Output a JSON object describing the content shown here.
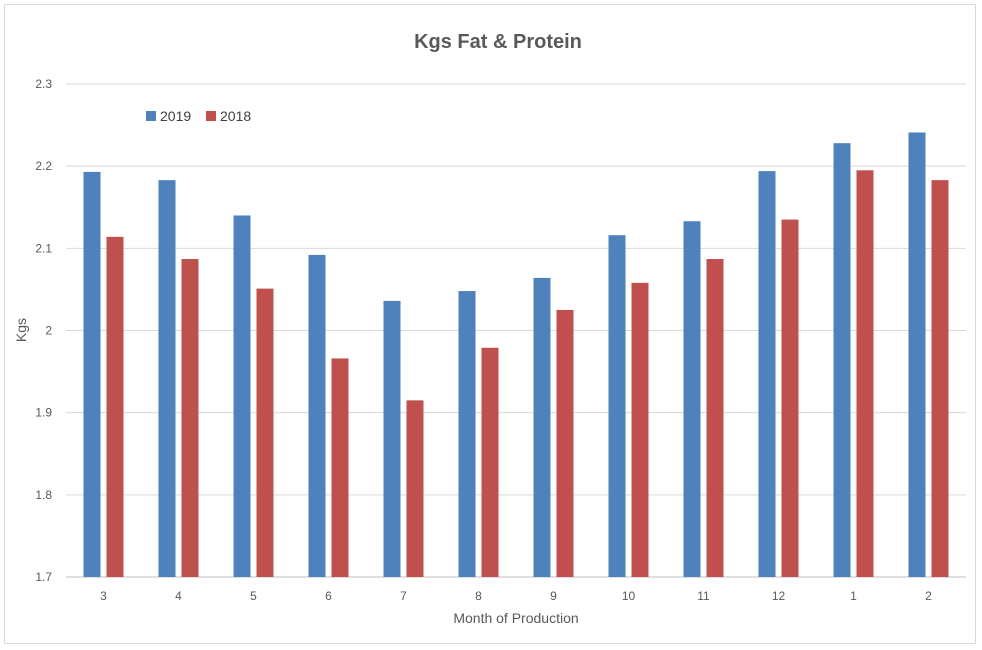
{
  "chart_data": {
    "type": "bar",
    "title": "Kgs Fat & Protein",
    "xlabel": "Month of Production",
    "ylabel": "Kgs",
    "categories": [
      "3",
      "4",
      "5",
      "6",
      "7",
      "8",
      "9",
      "10",
      "11",
      "12",
      "1",
      "2"
    ],
    "series": [
      {
        "name": "2019",
        "color": "#4f81bd",
        "values": [
          2.193,
          2.183,
          2.14,
          2.092,
          2.036,
          2.048,
          2.064,
          2.116,
          2.133,
          2.194,
          2.228,
          2.241
        ]
      },
      {
        "name": "2018",
        "color": "#c0504d",
        "values": [
          2.114,
          2.087,
          2.051,
          1.966,
          1.915,
          1.979,
          2.025,
          2.058,
          2.087,
          2.135,
          2.195,
          2.183
        ]
      }
    ],
    "ylim": [
      1.7,
      2.3
    ],
    "yticks": [
      "1.7",
      "1.8",
      "1.9",
      "2",
      "2.1",
      "2.2",
      "2.3"
    ],
    "grid": true,
    "legend_position": "top-left"
  }
}
